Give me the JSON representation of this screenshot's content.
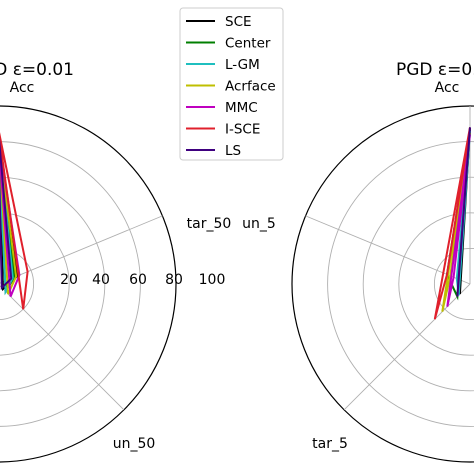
{
  "chart_data": [
    {
      "type": "radar",
      "title": "D ε=0.01",
      "axes": [
        "Acc",
        "tar_50",
        "un_50"
      ],
      "r_ticks": [
        "20",
        "40",
        "60",
        "80",
        "100"
      ],
      "rlim": [
        0,
        100
      ],
      "grid": true,
      "series": [
        {
          "name": "SCE",
          "color": "#000000",
          "values": [
            88,
            12,
            4
          ]
        },
        {
          "name": "Center",
          "color": "#007f00",
          "values": [
            87,
            10,
            6
          ]
        },
        {
          "name": "L-GM",
          "color": "#1fbfbf",
          "values": [
            86,
            9,
            6
          ]
        },
        {
          "name": "Acrface",
          "color": "#bfbf00",
          "values": [
            85,
            11,
            8
          ]
        },
        {
          "name": "MMC",
          "color": "#bf00bf",
          "values": [
            84,
            13,
            10
          ]
        },
        {
          "name": "I-SCE",
          "color": "#e0202c",
          "values": [
            88,
            18,
            20
          ]
        },
        {
          "name": "LS",
          "color": "#3f007f",
          "values": [
            88,
            8,
            3
          ]
        }
      ]
    },
    {
      "type": "radar",
      "title": "PGD ε=0.",
      "axes": [
        "Acc",
        "un_5",
        "tar_5"
      ],
      "rlim": [
        0,
        100
      ],
      "grid": true,
      "series": [
        {
          "name": "SCE",
          "color": "#000000",
          "values": [
            88,
            6,
            8
          ]
        },
        {
          "name": "Center",
          "color": "#007f00",
          "values": [
            87,
            14,
            10
          ]
        },
        {
          "name": "L-GM",
          "color": "#1fbfbf",
          "values": [
            86,
            8,
            9
          ]
        },
        {
          "name": "Acrface",
          "color": "#bfbf00",
          "values": [
            85,
            12,
            22
          ]
        },
        {
          "name": "MMC",
          "color": "#bf00bf",
          "values": [
            84,
            10,
            18
          ]
        },
        {
          "name": "I-SCE",
          "color": "#e0202c",
          "values": [
            88,
            14,
            28
          ]
        },
        {
          "name": "LS",
          "color": "#3f007f",
          "values": [
            88,
            7,
            10
          ]
        }
      ]
    }
  ],
  "legend": {
    "placement": "top-center",
    "entries": [
      "SCE",
      "Center",
      "L-GM",
      "Acrface",
      "MMC",
      "I-SCE",
      "LS"
    ]
  }
}
